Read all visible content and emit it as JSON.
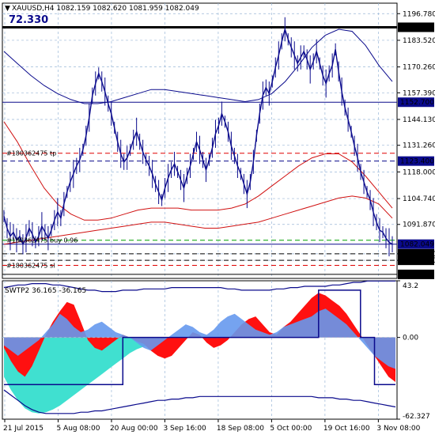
{
  "header": {
    "symbol_line": "XAUUSD,H4  1082.159 1082.620 1081.959 1082.049",
    "big_value": "72.330"
  },
  "indicator": {
    "label": "SWTP2 36.165 -36.165"
  },
  "chart_data": [
    {
      "type": "line",
      "name": "price-panel",
      "symbol": "XAUUSD",
      "timeframe": "H4",
      "ohlc_last": {
        "open": 1082.159,
        "high": 1082.62,
        "low": 1081.959,
        "close": 1082.049
      },
      "y_ticks": [
        1196.78,
        1183.52,
        1170.26,
        1157.39,
        1144.13,
        1131.26,
        1118.0,
        1104.74,
        1091.87,
        1077.25,
        1074.0
      ],
      "ylim": [
        1065.0,
        1202.0
      ],
      "x_labels": [
        "21 Jul 2015",
        "5 Aug 08:00",
        "20 Aug 00:00",
        "3 Sep 16:00",
        "18 Sep 08:00",
        "5 Oct 00:00",
        "19 Oct 16:00",
        "3 Nov 08:00"
      ],
      "close_series": [
        1096,
        1090,
        1086,
        1088,
        1084,
        1086,
        1082,
        1085,
        1090,
        1087,
        1083,
        1086,
        1091,
        1088,
        1085,
        1089,
        1094,
        1098,
        1095,
        1102,
        1108,
        1113,
        1117,
        1121,
        1124,
        1129,
        1136,
        1145,
        1156,
        1162,
        1167,
        1163,
        1158,
        1152,
        1147,
        1140,
        1133,
        1127,
        1123,
        1125,
        1129,
        1134,
        1138,
        1133,
        1128,
        1124,
        1121,
        1117,
        1112,
        1108,
        1104,
        1110,
        1115,
        1119,
        1122,
        1118,
        1114,
        1110,
        1116,
        1121,
        1127,
        1133,
        1129,
        1124,
        1119,
        1124,
        1130,
        1137,
        1141,
        1147,
        1143,
        1138,
        1131,
        1126,
        1121,
        1117,
        1112,
        1107,
        1113,
        1123,
        1136,
        1147,
        1156,
        1160,
        1157,
        1163,
        1170,
        1176,
        1183,
        1189,
        1184,
        1180,
        1176,
        1172,
        1175,
        1178,
        1174,
        1169,
        1173,
        1178,
        1172,
        1166,
        1162,
        1167,
        1171,
        1179,
        1168,
        1158,
        1150,
        1144,
        1138,
        1131,
        1125,
        1118,
        1113,
        1108,
        1104,
        1098,
        1093,
        1089,
        1088,
        1085,
        1083,
        1082
      ],
      "moving_averages": {
        "ma_short_blue": [
          1178,
          1172,
          1166,
          1161,
          1157,
          1154,
          1152,
          1152,
          1153,
          1155,
          1157,
          1159,
          1159,
          1158,
          1157,
          1156,
          1155,
          1154,
          1153,
          1154,
          1157,
          1163,
          1171,
          1180,
          1186,
          1189,
          1188,
          1181,
          1171,
          1163
        ],
        "ma_mid_red": [
          1143,
          1133,
          1121,
          1110,
          1102,
          1097,
          1094,
          1094,
          1095,
          1097,
          1099,
          1100,
          1100,
          1100,
          1099,
          1099,
          1099,
          1100,
          1102,
          1106,
          1111,
          1116,
          1121,
          1125,
          1127,
          1127,
          1123,
          1116,
          1108,
          1100
        ],
        "ma_long_red": [
          1082,
          1083,
          1084,
          1085,
          1086,
          1087,
          1088,
          1089,
          1090,
          1091,
          1092,
          1093,
          1093,
          1092,
          1091,
          1090,
          1090,
          1091,
          1092,
          1093,
          1095,
          1097,
          1099,
          1101,
          1103,
          1105,
          1106,
          1105,
          1102,
          1095
        ]
      },
      "horizontal_levels": [
        {
          "value": 1190.0,
          "label": "1190.000",
          "style": "black thick",
          "color": "#000000"
        },
        {
          "value": 1152.7,
          "label": "1152.700",
          "style": "navy solid",
          "color": "#0a0a8c"
        },
        {
          "value": 1123.4,
          "label": "1123.400",
          "style": "navy dashed",
          "color": "#0a0a8c"
        },
        {
          "value": 1127.3,
          "label": "#180362475 tp",
          "style": "red dashed",
          "color": "#e00000"
        },
        {
          "value": 1082.049,
          "label": "1082.049",
          "style": "navy current price",
          "color": "#0a0a8c"
        },
        {
          "value": 1084.0,
          "label": "#180362475 buy 0.96",
          "style": "green dashed",
          "color": "#00a000"
        },
        {
          "value": 1077.25,
          "label": "1077.250",
          "style": "black dashed",
          "color": "#000000"
        },
        {
          "value": 1074.0,
          "label": "1074.000",
          "style": "black dashed",
          "color": "#000000"
        },
        {
          "value": 1071.5,
          "label": "#180362475 sl",
          "style": "red dashed",
          "color": "#e00000"
        },
        {
          "value": 1067.0,
          "label": "1067.000",
          "style": "black solid",
          "color": "#000000"
        }
      ]
    },
    {
      "type": "area",
      "name": "SWTP2",
      "y_ticks": [
        43.2,
        0.0,
        -62.327
      ],
      "ylim": [
        -62.327,
        43.2
      ],
      "values_label": "36.165 -36.165",
      "red_series": [
        -8,
        -18,
        -26,
        -30,
        -22,
        -10,
        2,
        12,
        20,
        27,
        25,
        12,
        -2,
        -8,
        -10,
        -6,
        -2,
        2,
        0,
        -3,
        -5,
        -10,
        -14,
        -16,
        -14,
        -8,
        -2,
        4,
        2,
        -4,
        -8,
        -6,
        -2,
        4,
        10,
        14,
        16,
        10,
        4,
        2,
        8,
        12,
        18,
        24,
        30,
        34,
        32,
        28,
        24,
        18,
        10,
        2,
        -6,
        -14,
        -22,
        -30,
        -34
      ],
      "blue_series": [
        -6,
        -10,
        -14,
        -10,
        -6,
        -2,
        4,
        10,
        18,
        14,
        8,
        4,
        6,
        10,
        12,
        8,
        4,
        2,
        0,
        -4,
        -8,
        -10,
        -6,
        -2,
        2,
        6,
        10,
        8,
        4,
        2,
        6,
        12,
        16,
        18,
        14,
        10,
        6,
        4,
        2,
        4,
        8,
        10,
        12,
        14,
        16,
        20,
        22,
        18,
        14,
        10,
        4,
        -2,
        -8,
        -14,
        -18,
        -22,
        -24
      ],
      "teal_series": [
        -30,
        -40,
        -48,
        -54,
        -57,
        -58,
        -57,
        -55,
        -52,
        -48,
        -44,
        -40,
        -36,
        -32,
        -28,
        -24,
        -20,
        -16,
        -12,
        -9,
        -7,
        -5,
        -4,
        -3,
        -2,
        -1,
        0,
        0,
        0,
        0,
        0,
        0,
        0,
        0,
        0,
        0,
        0,
        0,
        0,
        0,
        0,
        0,
        0,
        0,
        0,
        0,
        0,
        0,
        0,
        0,
        0,
        0,
        0,
        0,
        0,
        0,
        0
      ],
      "step_line": [
        -36,
        -36,
        -36,
        -36,
        -36,
        -36,
        -36,
        -36,
        -36,
        -36,
        -36,
        -36,
        -36,
        -36,
        -36,
        -36,
        -36,
        0,
        0,
        0,
        0,
        0,
        0,
        0,
        0,
        0,
        0,
        0,
        0,
        0,
        0,
        0,
        0,
        0,
        0,
        0,
        0,
        0,
        0,
        0,
        0,
        0,
        0,
        0,
        0,
        36,
        36,
        36,
        36,
        36,
        36,
        0,
        0,
        -36,
        -36,
        -36,
        -36
      ],
      "envelope_top": [
        38,
        39,
        40,
        40,
        41,
        41,
        41,
        40,
        40,
        39,
        38,
        37,
        36,
        36,
        35,
        35,
        35,
        36,
        36,
        36,
        37,
        37,
        37,
        37,
        38,
        38,
        38,
        38,
        38,
        38,
        38,
        38,
        37,
        37,
        36,
        36,
        36,
        36,
        36,
        37,
        37,
        38,
        38,
        39,
        39,
        39,
        39,
        40,
        40,
        41,
        42,
        42,
        43,
        43,
        43,
        43,
        43
      ],
      "envelope_bottom": [
        -40,
        -44,
        -48,
        -52,
        -55,
        -57,
        -58,
        -58,
        -58,
        -58,
        -58,
        -57,
        -57,
        -56,
        -56,
        -55,
        -54,
        -53,
        -52,
        -51,
        -50,
        -49,
        -48,
        -48,
        -47,
        -47,
        -46,
        -46,
        -45,
        -45,
        -45,
        -45,
        -45,
        -45,
        -45,
        -45,
        -45,
        -45,
        -45,
        -45,
        -45,
        -45,
        -45,
        -45,
        -45,
        -46,
        -46,
        -46,
        -47,
        -47,
        -48,
        -48,
        -49,
        -50,
        -51,
        -52,
        -53
      ]
    }
  ]
}
